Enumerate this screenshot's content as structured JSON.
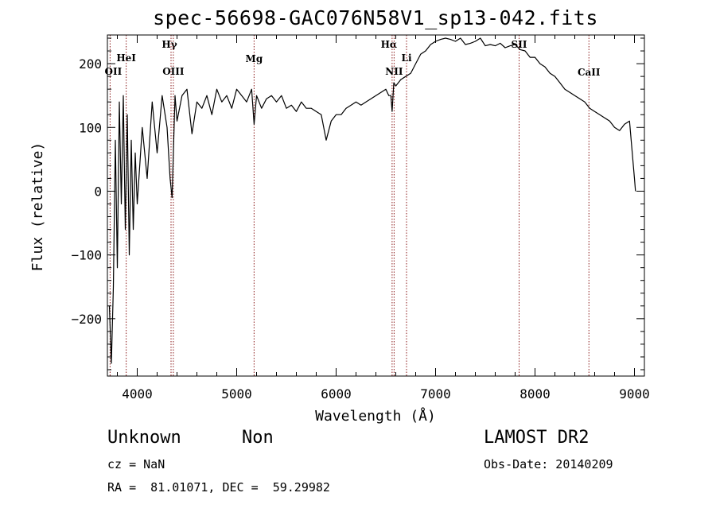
{
  "chart_data": {
    "type": "line",
    "title": "spec-56698-GAC076N58V1_sp13-042.fits",
    "xlabel": "Wavelength (Å)",
    "ylabel": "Flux (relative)",
    "xlim": [
      3700,
      9100
    ],
    "ylim": [
      -290,
      245
    ],
    "xticks": [
      4000,
      5000,
      6000,
      7000,
      8000,
      9000
    ],
    "yticks": [
      -200,
      -100,
      0,
      100,
      200
    ],
    "series": [
      {
        "x": [
          3720,
          3740,
          3760,
          3780,
          3800,
          3820,
          3840,
          3860,
          3880,
          3900,
          3920,
          3940,
          3960,
          3980,
          4000,
          4050,
          4100,
          4150,
          4200,
          4250,
          4300,
          4330,
          4350,
          4380,
          4400,
          4450,
          4500,
          4550,
          4600,
          4650,
          4700,
          4750,
          4800,
          4850,
          4900,
          4950,
          5000,
          5050,
          5100,
          5150,
          5175,
          5200,
          5250,
          5300,
          5350,
          5400,
          5450,
          5500,
          5550,
          5600,
          5650,
          5700,
          5750,
          5800,
          5850,
          5900,
          5950,
          6000,
          6050,
          6100,
          6150,
          6200,
          6250,
          6300,
          6350,
          6400,
          6450,
          6500,
          6530,
          6550,
          6563,
          6580,
          6600,
          6650,
          6700,
          6750,
          6800,
          6850,
          6900,
          6950,
          7000,
          7050,
          7100,
          7150,
          7200,
          7250,
          7300,
          7350,
          7400,
          7450,
          7500,
          7550,
          7600,
          7650,
          7700,
          7750,
          7800,
          7850,
          7900,
          7950,
          8000,
          8050,
          8100,
          8150,
          8200,
          8250,
          8300,
          8350,
          8400,
          8450,
          8500,
          8550,
          8600,
          8650,
          8700,
          8750,
          8800,
          8850,
          8900,
          8950,
          9000,
          9010
        ],
        "values": [
          -180,
          -270,
          -150,
          80,
          -120,
          140,
          -20,
          150,
          -60,
          120,
          -100,
          80,
          -60,
          60,
          -20,
          100,
          20,
          140,
          60,
          150,
          100,
          20,
          -10,
          150,
          110,
          150,
          160,
          90,
          140,
          130,
          150,
          120,
          160,
          140,
          150,
          130,
          160,
          150,
          140,
          160,
          105,
          150,
          130,
          145,
          150,
          140,
          150,
          130,
          135,
          125,
          140,
          130,
          130,
          125,
          120,
          80,
          110,
          120,
          120,
          130,
          135,
          140,
          135,
          140,
          145,
          150,
          155,
          160,
          150,
          150,
          125,
          170,
          165,
          175,
          180,
          185,
          200,
          215,
          220,
          230,
          235,
          238,
          240,
          238,
          235,
          240,
          230,
          232,
          235,
          240,
          228,
          230,
          228,
          232,
          225,
          228,
          230,
          222,
          220,
          210,
          210,
          200,
          195,
          185,
          180,
          170,
          160,
          155,
          150,
          145,
          140,
          130,
          125,
          120,
          115,
          110,
          100,
          95,
          105,
          110,
          20,
          0
        ]
      }
    ],
    "lines": [
      {
        "name": "OII",
        "x": 3727
      },
      {
        "name": "HeI",
        "x": 3889
      },
      {
        "name": "Hγ",
        "x": 4340
      },
      {
        "name": "OIII",
        "x": 4363
      },
      {
        "name": "Mg",
        "x": 5175
      },
      {
        "name": "Hα",
        "x": 6563
      },
      {
        "name": "NII",
        "x": 6583
      },
      {
        "name": "Li",
        "x": 6708
      },
      {
        "name": "SII",
        "x": 7840
      },
      {
        "name": "CaII",
        "x": 8542
      }
    ],
    "line_color": "#8b1a1a",
    "grid": false
  },
  "info": {
    "class": "Unknown",
    "subclass": "Non",
    "survey": "LAMOST DR2",
    "cz": "cz = NaN",
    "obsdate": "Obs-Date: 20140209",
    "radec": "RA =  81.01071, DEC =  59.29982"
  }
}
